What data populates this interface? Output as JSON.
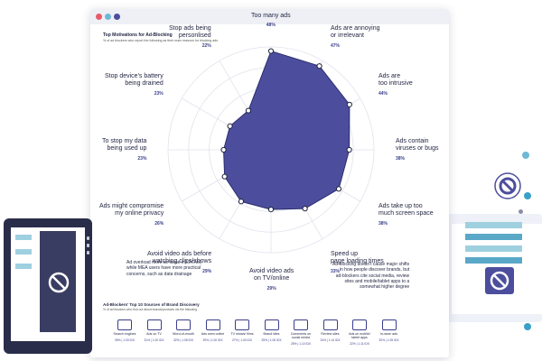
{
  "report": {
    "title": "Top Motivations for Ad-Blocking",
    "subtitle": "% of ad blockers who report the following as their main reasons for blocking ads"
  },
  "chart_data": {
    "type": "radar",
    "title": "Top Motivations for Ad-Blocking",
    "subtitle": "% of ad blockers who report the following as their main reasons for blocking ads",
    "ylim": [
      0,
      50
    ],
    "grid": true,
    "categories": [
      "Too many ads",
      "Ads are annoying or irrelevant",
      "Ads are too intrusive",
      "Ads contain viruses or bugs",
      "Ads take up too much screen space",
      "Speed up page loading times",
      "Avoid video ads on TV/online",
      "Avoid video ads before watching clips/shows",
      "Ads might compromise my online privacy",
      "To stop my data being used up",
      "Stop device's battery being drained",
      "Stop ads being personlised"
    ],
    "label_lines": [
      [
        "Too many ads"
      ],
      [
        "Ads are annoying",
        "or irrelevant"
      ],
      [
        "Ads are",
        "too intrusive"
      ],
      [
        "Ads contain",
        "viruses or bugs"
      ],
      [
        "Ads take up too",
        "much screen space"
      ],
      [
        "Speed up",
        "page loading times"
      ],
      [
        "Avoid video ads",
        "on TV/online"
      ],
      [
        "Avoid video ads before",
        "watching clips/shows"
      ],
      [
        "Ads might compromise",
        "my online privacy"
      ],
      [
        "To stop my data",
        "being used up"
      ],
      [
        "Stop device's battery",
        "being drained"
      ],
      [
        "Stop ads being",
        "personlised"
      ]
    ],
    "labels": [
      "48%",
      "47%",
      "44%",
      "38%",
      "38%",
      "33%",
      "29%",
      "29%",
      "26%",
      "23%",
      "23%",
      "22%"
    ],
    "values": [
      48,
      47,
      44,
      38,
      38,
      33,
      29,
      29,
      26,
      23,
      23,
      22
    ]
  },
  "notes": {
    "left": [
      "Ad overload more an issue in LATAM,",
      "while MEA users have more practical",
      "concerns, such as data drainage"
    ],
    "right": [
      "Ad-blocking doesn't cause major shifts",
      "in how people discover brands, but",
      "ad-blockers cite social media, review",
      "sites and mobile/tablet apps to a",
      "somewhat higher degree"
    ]
  },
  "sources": {
    "title": "Ad-Blockers' Top 10 Sources of Brand Discovery",
    "subtitle": "% of ad blockers who find out about brands/products via the following",
    "items": [
      {
        "name": "Search engines",
        "value": "39% | 1.03 IDX",
        "icon": "search-engine-icon"
      },
      {
        "name": "Ads on TV",
        "value": "31% | 1.00 IDX",
        "icon": "tv-ad-icon"
      },
      {
        "name": "Word-of-mouth",
        "value": "32% | 1.05 IDX",
        "icon": "speech-bubbles-icon"
      },
      {
        "name": "Ads seen online",
        "value": "29% | 1.00 IDX",
        "icon": "online-ad-icon"
      },
      {
        "name": "TV shows/ films",
        "value": "27% | 1.00 IDX",
        "icon": "camera-icon"
      },
      {
        "name": "Brand sites",
        "value": "25% | 1.05 IDX",
        "icon": "brand-site-icon"
      },
      {
        "name": "Comments on social media",
        "value": "25% | 1.10 IDX",
        "icon": "thumbs-up-icon"
      },
      {
        "name": "Review sites",
        "value": "24% | 1.14 IDX",
        "icon": "review-site-icon"
      },
      {
        "name": "Ads on mobile/ tablet apps",
        "value": "22% | 1.11 IDX",
        "icon": "mobile-ad-icon"
      },
      {
        "name": "In-store ads",
        "value": "20% | 1.05 IDX",
        "icon": "store-ad-icon"
      }
    ]
  },
  "colors": {
    "accent": "#4c4e9d",
    "text": "#1f2340",
    "dot_grey": "#8a8fa3",
    "dot_blue": "#6fb7d6",
    "dot_cyan": "#3aa0c8",
    "bar_cyan": "#5aa8c8"
  },
  "decor": {
    "icons": [
      "ban-icon",
      "monitor-illustration"
    ]
  }
}
